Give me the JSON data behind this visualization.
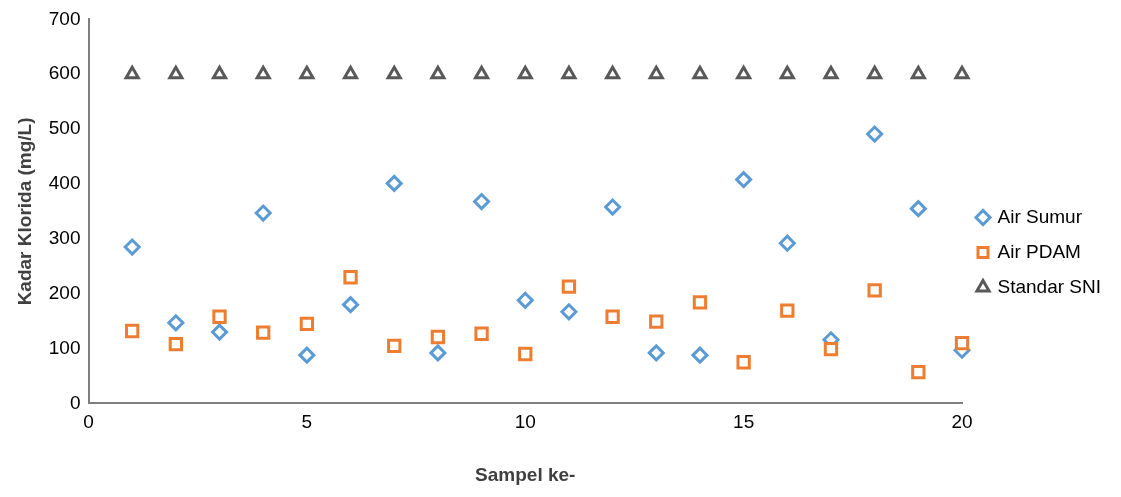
{
  "chart_data": {
    "type": "scatter",
    "xlabel": "Sampel ke-",
    "ylabel": "Kadar Klorida (mg/L)",
    "x": [
      1,
      2,
      3,
      4,
      5,
      6,
      7,
      8,
      9,
      10,
      11,
      12,
      13,
      14,
      15,
      16,
      17,
      18,
      19,
      20
    ],
    "xlim": [
      0,
      20
    ],
    "xticks": [
      0,
      5,
      10,
      15,
      20
    ],
    "ylim": [
      0,
      700
    ],
    "yticks": [
      0,
      100,
      200,
      300,
      400,
      500,
      600,
      700
    ],
    "grid": false,
    "legend": "right",
    "series": [
      {
        "name": "Air Sumur",
        "color": "#5b9bd5",
        "marker": "diamond",
        "values": [
          285,
          147,
          130,
          347,
          88,
          180,
          401,
          92,
          368,
          188,
          167,
          358,
          92,
          88,
          408,
          292,
          116,
          491,
          355,
          97
        ]
      },
      {
        "name": "Air PDAM",
        "color": "#ed7d31",
        "marker": "square",
        "values": [
          132,
          108,
          158,
          129,
          145,
          230,
          105,
          121,
          127,
          90,
          213,
          158,
          149,
          184,
          75,
          169,
          99,
          206,
          57,
          110
        ]
      },
      {
        "name": "Standar SNI",
        "color": "#595959",
        "marker": "triangle",
        "values": [
          600,
          600,
          600,
          600,
          600,
          600,
          600,
          600,
          600,
          600,
          600,
          600,
          600,
          600,
          600,
          600,
          600,
          600,
          600,
          600
        ]
      }
    ]
  }
}
